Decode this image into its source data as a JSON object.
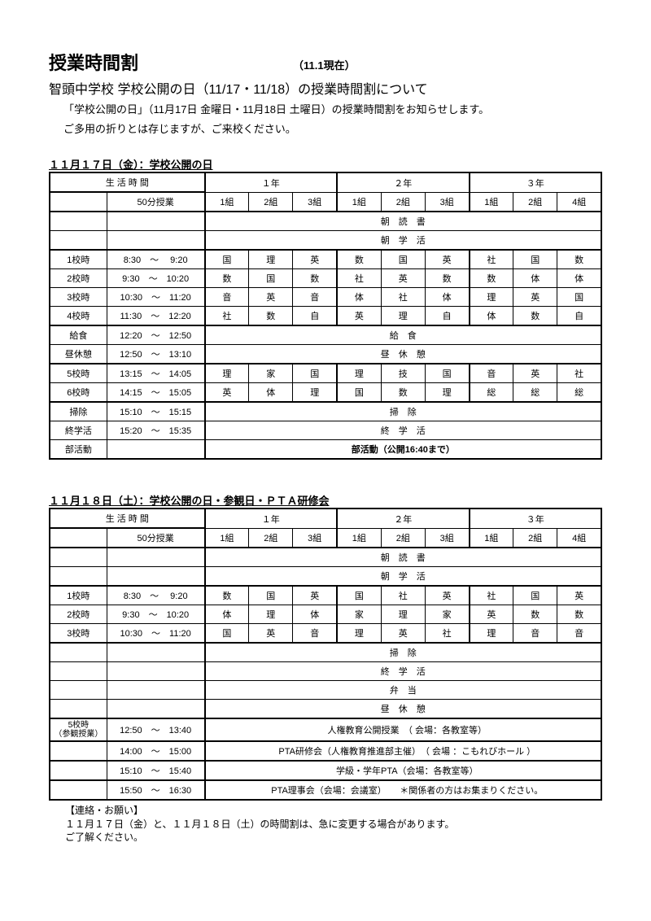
{
  "header": {
    "title": "授業時間割",
    "asof": "（11.1現在）",
    "subtitle": "智頭中学校 学校公開の日（11/17・11/18）の授業時間割について",
    "intro1": "「学校公開の日」（11月17日 金曜日・11月18日 土曜日）の授業時間割をお知らせします。",
    "intro2": "ご多用の折りとは存じますが、ご来校ください。"
  },
  "day1": {
    "heading": "１１月１７日（金）：学校公開の日",
    "lifeTimeLabel": "生 活 時 間",
    "minuteLabel": "50分授業",
    "grades": [
      "１年",
      "２年",
      "３年"
    ],
    "classes": [
      "1組",
      "2組",
      "3組",
      "1組",
      "2組",
      "3組",
      "1組",
      "2組",
      "4組"
    ],
    "spanRows": [
      {
        "label": "",
        "time": "",
        "text": "朝　読　書"
      },
      {
        "label": "",
        "time": "",
        "text": "朝　学　活"
      }
    ],
    "periods": [
      {
        "label": "1校時",
        "time": "8:30　～　 9:20",
        "cells": [
          "国",
          "理",
          "英",
          "数",
          "国",
          "英",
          "社",
          "国",
          "数"
        ]
      },
      {
        "label": "2校時",
        "time": "9:30　～　10:20",
        "cells": [
          "数",
          "国",
          "数",
          "社",
          "英",
          "数",
          "数",
          "体",
          "体"
        ]
      },
      {
        "label": "3校時",
        "time": "10:30　～　11:20",
        "cells": [
          "音",
          "英",
          "音",
          "体",
          "社",
          "体",
          "理",
          "英",
          "国"
        ]
      },
      {
        "label": "4校時",
        "time": "11:30　～　12:20",
        "cells": [
          "社",
          "数",
          "自",
          "英",
          "理",
          "自",
          "体",
          "数",
          "自"
        ]
      }
    ],
    "spanRows2": [
      {
        "label": "給食",
        "time": "12:20　～　12:50",
        "text": "給　食"
      },
      {
        "label": "昼休憩",
        "time": "12:50　～　13:10",
        "text": "昼　休　憩"
      }
    ],
    "periods2": [
      {
        "label": "5校時",
        "time": "13:15　～　14:05",
        "cells": [
          "理",
          "家",
          "国",
          "理",
          "技",
          "国",
          "音",
          "英",
          "社"
        ]
      },
      {
        "label": "6校時",
        "time": "14:15　～　15:05",
        "cells": [
          "英",
          "体",
          "理",
          "国",
          "数",
          "理",
          "総",
          "総",
          "総"
        ]
      }
    ],
    "spanRows3": [
      {
        "label": "掃除",
        "time": "15:10　～　15:15",
        "text": "掃　除"
      },
      {
        "label": "終学活",
        "time": "15:20　～　15:35",
        "text": "終　学　活"
      },
      {
        "label": "部活動",
        "time": "",
        "text": "部活動（公開16:40まで）",
        "bold": true
      }
    ]
  },
  "day2": {
    "heading": "１１月１８日（土）：学校公開の日・参観日・ＰＴＡ研修会",
    "lifeTimeLabel": "生 活 時 間",
    "minuteLabel": "50分授業",
    "grades": [
      "１年",
      "２年",
      "３年"
    ],
    "classes": [
      "1組",
      "2組",
      "3組",
      "1組",
      "2組",
      "3組",
      "1組",
      "2組",
      "4組"
    ],
    "spanRows": [
      {
        "label": "",
        "time": "",
        "text": "朝　読　書"
      },
      {
        "label": "",
        "time": "",
        "text": "朝　学　活"
      }
    ],
    "periods": [
      {
        "label": "1校時",
        "time": "8:30　～　 9:20",
        "cells": [
          "数",
          "国",
          "英",
          "国",
          "社",
          "英",
          "社",
          "国",
          "英"
        ]
      },
      {
        "label": "2校時",
        "time": "9:30　～　10:20",
        "cells": [
          "体",
          "理",
          "体",
          "家",
          "理",
          "家",
          "英",
          "数",
          "数"
        ]
      },
      {
        "label": "3校時",
        "time": "10:30　～　11:20",
        "cells": [
          "国",
          "英",
          "音",
          "理",
          "英",
          "社",
          "理",
          "音",
          "音"
        ]
      }
    ],
    "spanRows2": [
      {
        "label": "",
        "time": "",
        "text": "掃　除"
      },
      {
        "label": "",
        "time": "",
        "text": "終　学　活"
      },
      {
        "label": "",
        "time": "",
        "text": "弁　当"
      },
      {
        "label": "",
        "time": "",
        "text": "昼　休　憩"
      }
    ],
    "special": [
      {
        "label": "5校時\n（参観授業）",
        "time": "12:50　～　13:40",
        "text": "人権教育公開授業　（ 会場：各教室等）"
      },
      {
        "label": "",
        "time": "14:00　～　15:00",
        "text": "PTA研修会（人権教育推進部主催）　（ 会場 ：こもれびホール ）"
      },
      {
        "label": "",
        "time": "15:10　～　15:40",
        "text": "学級・学年PTA（会場：各教室等）"
      },
      {
        "label": "",
        "time": "15:50　～　16:30",
        "text": "PTA理事会（会場：会議室）　　＊関係者の方はお集まりください。"
      }
    ]
  },
  "footer": {
    "l1": "【連絡・お願い】",
    "l2": "１１月１７日（金）と、１１月１８日（土）の時間割は、急に変更する場合があります。",
    "l3": "ご了解ください。"
  }
}
